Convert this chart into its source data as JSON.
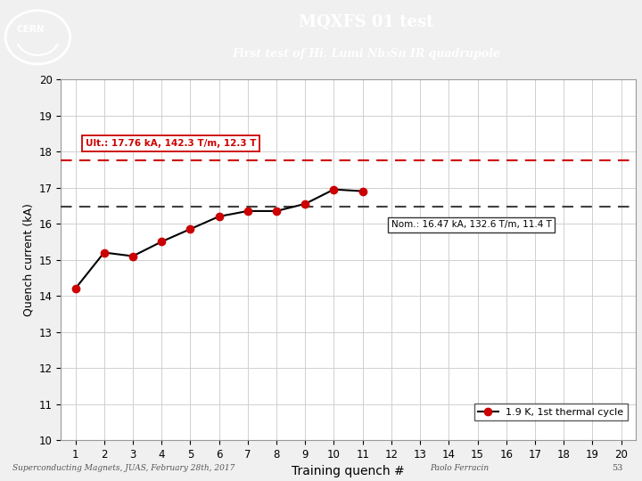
{
  "title_line1": "MQXFS 01 test",
  "title_line2": "First test of Hi. Lumi Nb₃Sn IR quadrupole",
  "header_bg": "#1f3864",
  "header_text_color": "#ffffff",
  "x_data": [
    1,
    2,
    3,
    4,
    5,
    6,
    7,
    8,
    9,
    10,
    11
  ],
  "y_data": [
    14.2,
    15.2,
    15.1,
    15.5,
    15.85,
    16.2,
    16.35,
    16.35,
    16.55,
    16.95,
    16.9
  ],
  "line_color": "#000000",
  "marker_color": "#cc0000",
  "ult_y": 17.76,
  "ult_color": "#cc0000",
  "ult_label": "Ult.: 17.76 kA, 142.3 T/m, 12.3 T",
  "nom_y": 16.47,
  "nom_label": "Nom.: 16.47 kA, 132.6 T/m, 11.4 T",
  "xlabel": "Training quench #",
  "ylabel": "Quench current (kA)",
  "xlim": [
    0.5,
    20.5
  ],
  "ylim": [
    10,
    20
  ],
  "yticks": [
    10,
    11,
    12,
    13,
    14,
    15,
    16,
    17,
    18,
    19,
    20
  ],
  "xticks": [
    1,
    2,
    3,
    4,
    5,
    6,
    7,
    8,
    9,
    10,
    11,
    12,
    13,
    14,
    15,
    16,
    17,
    18,
    19,
    20
  ],
  "legend_label": "1.9 K, 1st thermal cycle",
  "footer_left": "Superconducting Magnets, JUAS, February 28th, 2017",
  "footer_right": "Paolo Ferracin",
  "footer_page": "53",
  "bg_color": "#f0f0f0",
  "plot_bg": "#ffffff",
  "grid_color": "#d0d0d0"
}
